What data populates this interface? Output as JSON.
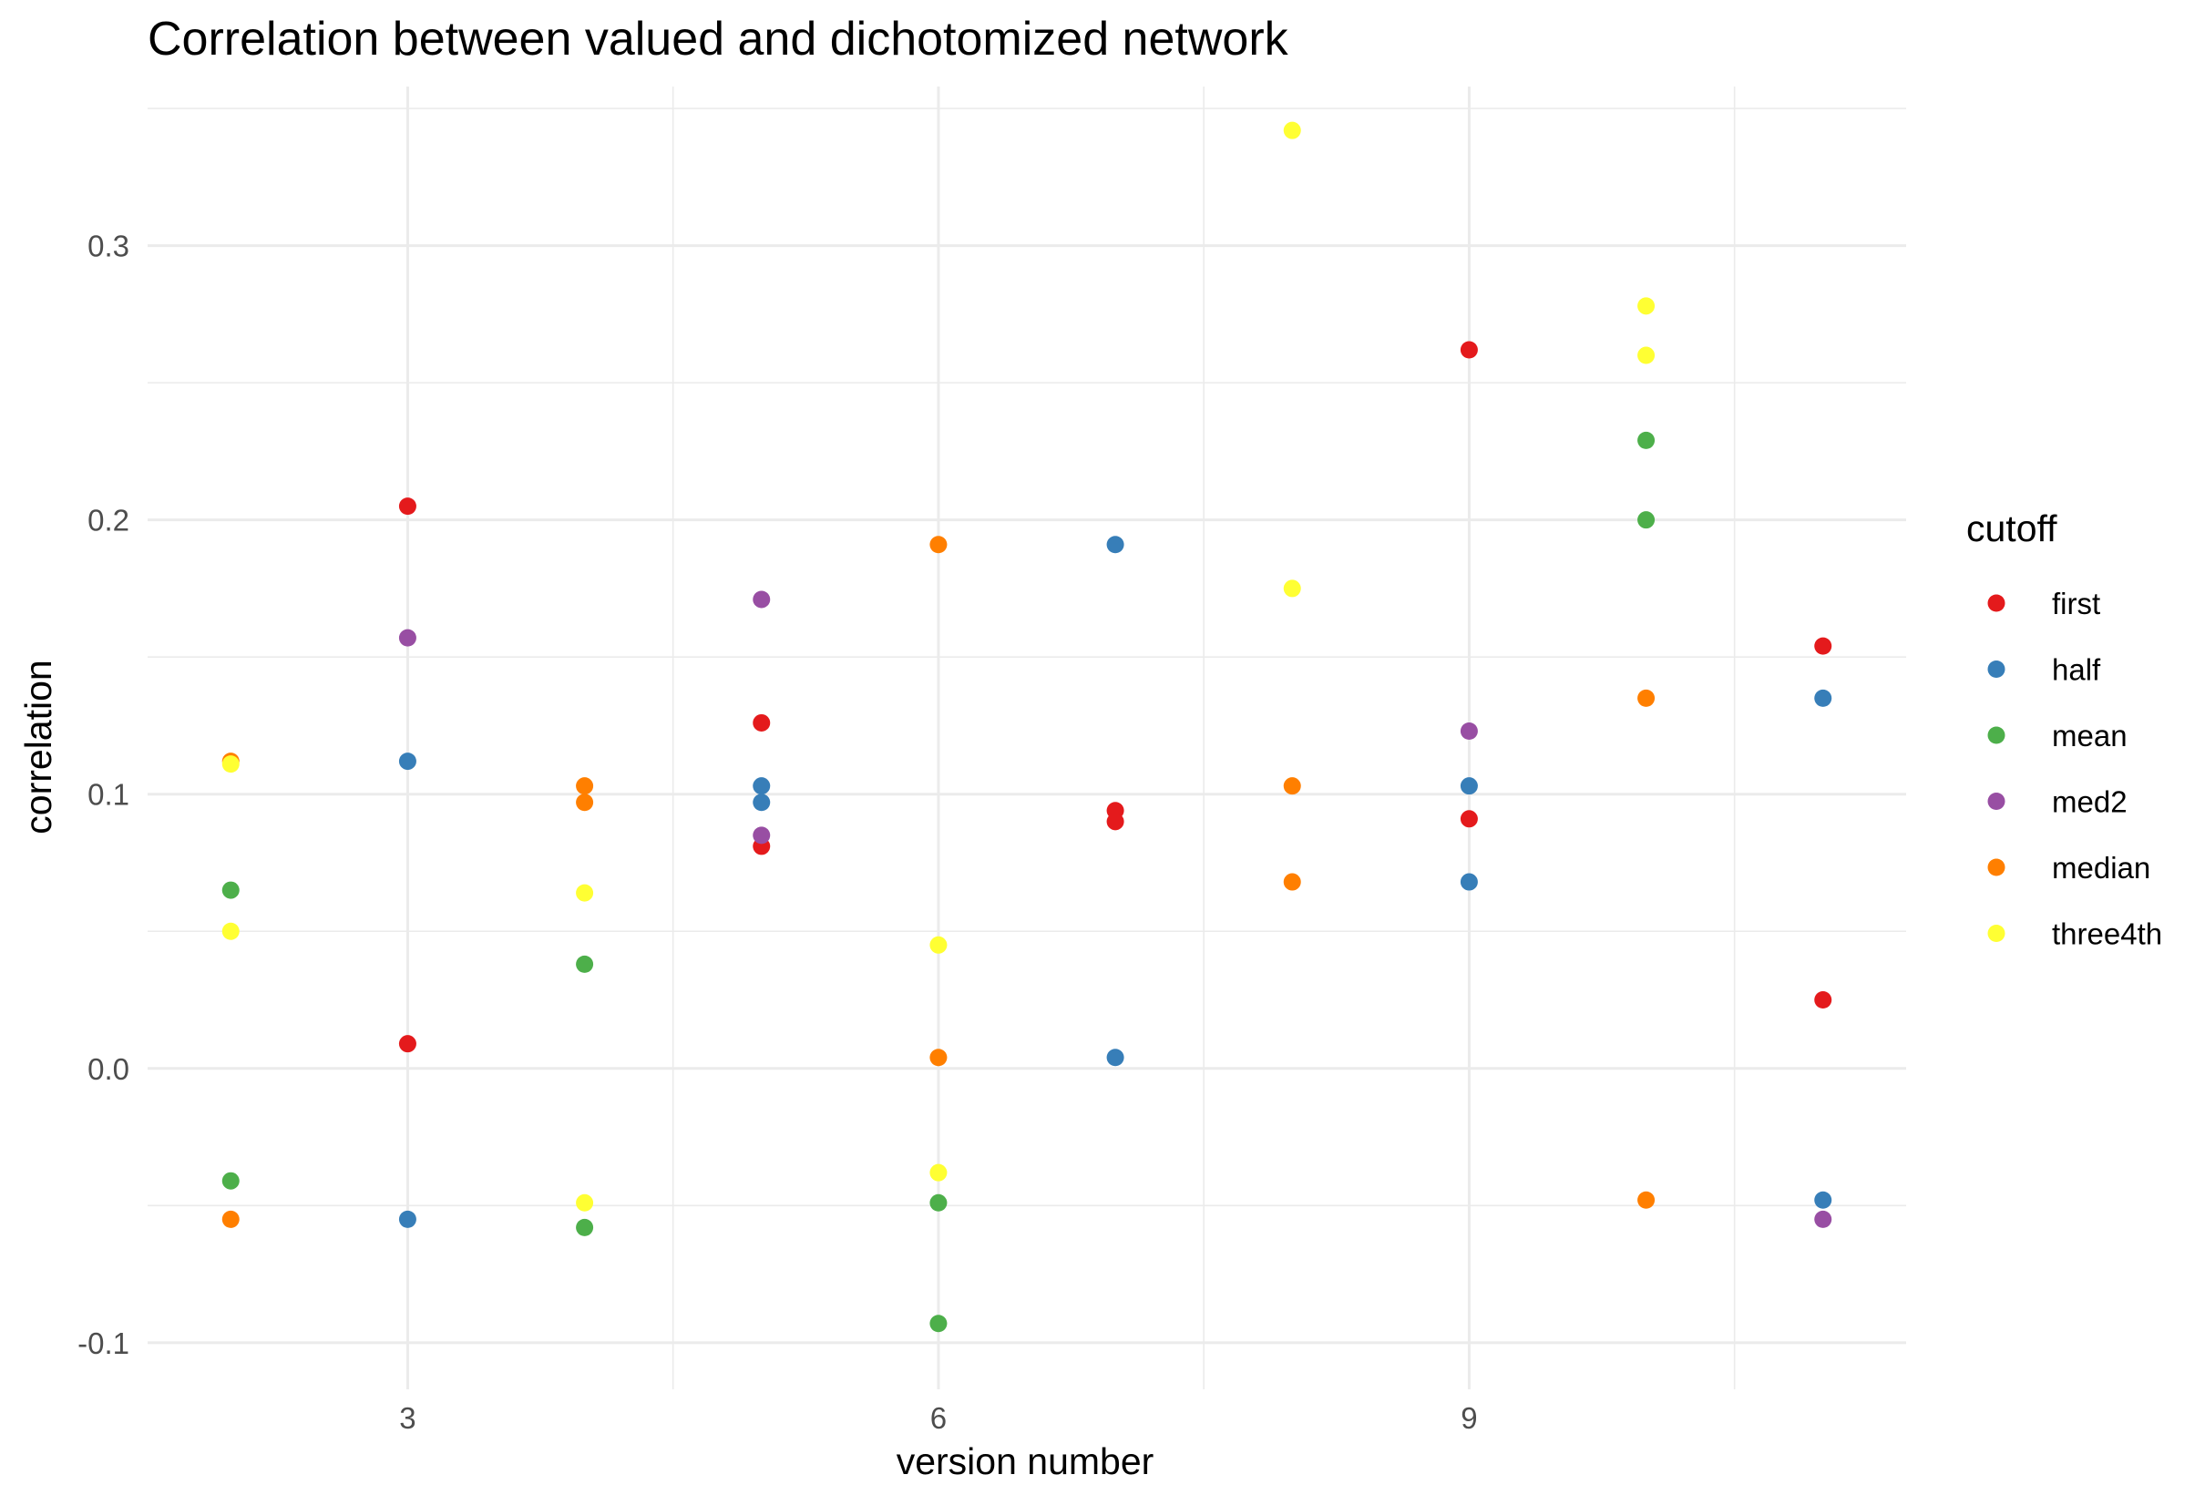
{
  "chart_data": {
    "type": "scatter",
    "title": "Correlation between valued and dichotomized network",
    "xlabel": "version number",
    "ylabel": "correlation",
    "xlim": [
      1.53,
      11.47
    ],
    "ylim": [
      -0.117,
      0.358
    ],
    "x_ticks": [
      3,
      6,
      9
    ],
    "x_tick_labels": [
      "3",
      "6",
      "9"
    ],
    "y_ticks": [
      -0.1,
      0.0,
      0.1,
      0.2,
      0.3
    ],
    "y_tick_labels": [
      "-0.1",
      "0.0",
      "0.1",
      "0.2",
      "0.3"
    ],
    "grid": true,
    "legend": {
      "title": "cutoff",
      "position": "right"
    },
    "series": [
      {
        "name": "first",
        "color": "#e41a1c",
        "points": [
          [
            3,
            0.205
          ],
          [
            3,
            0.009
          ],
          [
            5,
            0.126
          ],
          [
            5,
            0.081
          ],
          [
            7,
            0.094
          ],
          [
            7,
            0.09
          ],
          [
            9,
            0.262
          ],
          [
            9,
            0.091
          ],
          [
            11,
            0.154
          ],
          [
            11,
            0.025
          ]
        ]
      },
      {
        "name": "half",
        "color": "#377eb8",
        "points": [
          [
            3,
            0.112
          ],
          [
            3,
            -0.055
          ],
          [
            5,
            0.103
          ],
          [
            5,
            0.097
          ],
          [
            7,
            0.191
          ],
          [
            7,
            0.004
          ],
          [
            9,
            0.103
          ],
          [
            9,
            0.068
          ],
          [
            11,
            0.135
          ],
          [
            11,
            -0.048
          ]
        ]
      },
      {
        "name": "mean",
        "color": "#4daf4a",
        "points": [
          [
            2,
            0.065
          ],
          [
            2,
            -0.041
          ],
          [
            4,
            0.038
          ],
          [
            4,
            -0.058
          ],
          [
            6,
            -0.049
          ],
          [
            6,
            -0.093
          ],
          [
            10,
            0.229
          ],
          [
            10,
            0.2
          ]
        ]
      },
      {
        "name": "med2",
        "color": "#984ea3",
        "points": [
          [
            3,
            0.157
          ],
          [
            5,
            0.171
          ],
          [
            5,
            0.085
          ],
          [
            9,
            0.123
          ],
          [
            11,
            -0.055
          ]
        ]
      },
      {
        "name": "median",
        "color": "#ff7f00",
        "points": [
          [
            2,
            0.112
          ],
          [
            2,
            -0.055
          ],
          [
            4,
            0.103
          ],
          [
            4,
            0.097
          ],
          [
            6,
            0.191
          ],
          [
            6,
            0.004
          ],
          [
            8,
            0.103
          ],
          [
            8,
            0.068
          ],
          [
            10,
            0.135
          ],
          [
            10,
            -0.048
          ]
        ]
      },
      {
        "name": "three4th",
        "color": "#ffff33",
        "points": [
          [
            2,
            0.111
          ],
          [
            2,
            0.05
          ],
          [
            4,
            0.064
          ],
          [
            4,
            -0.049
          ],
          [
            6,
            0.045
          ],
          [
            6,
            -0.038
          ],
          [
            8,
            0.342
          ],
          [
            8,
            0.175
          ],
          [
            10,
            0.278
          ],
          [
            10,
            0.26
          ]
        ]
      }
    ]
  }
}
